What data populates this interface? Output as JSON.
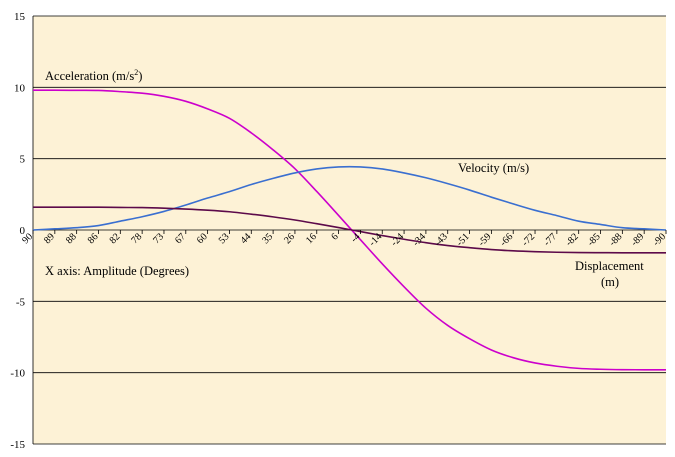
{
  "chart_data": {
    "type": "line",
    "title": "",
    "xlabel": "",
    "ylabel": "",
    "ylim": [
      -15,
      15
    ],
    "yticks": [
      "15",
      "10",
      "5",
      "0",
      "-5",
      "-10",
      "-15"
    ],
    "grid": true,
    "plot_background": "#fdf2d6",
    "xtick_labels": [
      "90",
      "89",
      "88",
      "86",
      "82",
      "78",
      "73",
      "67",
      "60",
      "53",
      "44",
      "35",
      "26",
      "16",
      "6",
      "-4",
      "-14",
      "-24",
      "-34",
      "-43",
      "-51",
      "-59",
      "-66",
      "-72",
      "-77",
      "-82",
      "-85",
      "-88",
      "-89",
      "-90"
    ],
    "series": [
      {
        "name": "Acceleration (m/s²)",
        "color": "#cc00cc",
        "x": [
          90,
          89,
          88,
          86,
          82,
          78,
          73,
          67,
          60,
          53,
          44,
          35,
          26,
          16,
          6,
          -4,
          -14,
          -24,
          -34,
          -43,
          -51,
          -59,
          -66,
          -72,
          -77,
          -82,
          -85,
          -88,
          -89,
          -90
        ],
        "values": [
          9.8,
          9.8,
          9.79,
          9.78,
          9.7,
          9.59,
          9.37,
          9.02,
          8.49,
          7.83,
          6.81,
          5.62,
          4.3,
          2.7,
          1.02,
          -0.68,
          -2.37,
          -3.98,
          -5.48,
          -6.69,
          -7.62,
          -8.41,
          -8.95,
          -9.32,
          -9.55,
          -9.7,
          -9.76,
          -9.79,
          -9.8,
          -9.8
        ]
      },
      {
        "name": "Velocity (m/s)",
        "color": "#3a6fd0",
        "x": [
          90,
          89,
          88,
          86,
          82,
          78,
          73,
          67,
          60,
          53,
          44,
          35,
          26,
          16,
          6,
          -4,
          -14,
          -24,
          -34,
          -43,
          -51,
          -59,
          -66,
          -72,
          -77,
          -82,
          -85,
          -88,
          -89,
          -90
        ],
        "values": [
          0,
          0.08,
          0.16,
          0.31,
          0.62,
          0.93,
          1.3,
          1.75,
          2.24,
          2.69,
          3.19,
          3.62,
          4.0,
          4.28,
          4.42,
          4.42,
          4.28,
          4.0,
          3.66,
          3.25,
          2.8,
          2.3,
          1.83,
          1.38,
          1.01,
          0.62,
          0.39,
          0.16,
          0.08,
          0
        ]
      },
      {
        "name": "Displacement (m)",
        "color": "#5c0a4a",
        "x": [
          90,
          89,
          88,
          86,
          82,
          78,
          73,
          67,
          60,
          53,
          44,
          35,
          26,
          16,
          6,
          -4,
          -14,
          -24,
          -34,
          -43,
          -51,
          -59,
          -66,
          -72,
          -77,
          -82,
          -85,
          -88,
          -89,
          -90
        ],
        "values": [
          1.6,
          1.6,
          1.6,
          1.6,
          1.58,
          1.57,
          1.53,
          1.47,
          1.39,
          1.28,
          1.11,
          0.92,
          0.7,
          0.44,
          0.17,
          -0.11,
          -0.39,
          -0.65,
          -0.89,
          -1.09,
          -1.24,
          -1.37,
          -1.46,
          -1.52,
          -1.56,
          -1.58,
          -1.59,
          -1.6,
          -1.6,
          -1.6
        ]
      }
    ],
    "annotations": {
      "acceleration_label": "Acceleration (m/s",
      "acceleration_sup": "2",
      "acceleration_close": ")",
      "velocity_label": "Velocity (m/s)",
      "displacement_label_line1": "Displacement",
      "displacement_label_line2": "(m)",
      "x_axis_note": "X axis: Amplitude (Degrees)"
    }
  }
}
